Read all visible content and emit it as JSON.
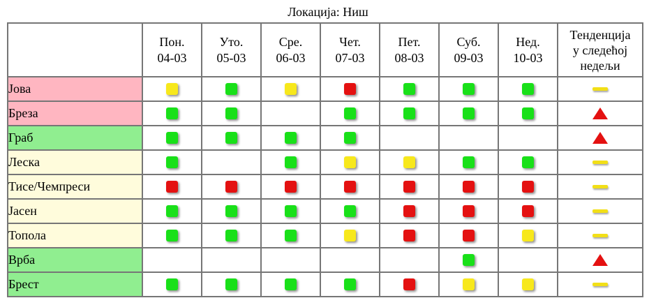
{
  "location_label": "Локација: Ниш",
  "colors": {
    "green": "#19e019",
    "yellow": "#f7e81c",
    "red": "#e41111",
    "pink_row": "#ffb6c1",
    "green_row": "#90ee90",
    "cream_row": "#fffcdc"
  },
  "header": {
    "days": [
      {
        "day": "Пон.",
        "date": "04-03"
      },
      {
        "day": "Уто.",
        "date": "05-03"
      },
      {
        "day": "Сре.",
        "date": "06-03"
      },
      {
        "day": "Чет.",
        "date": "07-03"
      },
      {
        "day": "Пет.",
        "date": "08-03"
      },
      {
        "day": "Суб.",
        "date": "09-03"
      },
      {
        "day": "Нед.",
        "date": "10-03"
      }
    ],
    "trend_line1": "Тенденција",
    "trend_line2": "у следећој",
    "trend_line3": "недељи"
  },
  "rows": [
    {
      "name": "Јова",
      "bg": "pink",
      "levels": [
        "yellow",
        "green",
        "yellow",
        "red",
        "green",
        "green",
        "green"
      ],
      "trend": "steady"
    },
    {
      "name": "Бреза",
      "bg": "pink",
      "levels": [
        "green",
        "green",
        "",
        "green",
        "green",
        "green",
        "green"
      ],
      "trend": "up"
    },
    {
      "name": "Граб",
      "bg": "green",
      "levels": [
        "green",
        "green",
        "green",
        "green",
        "",
        "",
        ""
      ],
      "trend": "up"
    },
    {
      "name": "Леска",
      "bg": "cream",
      "levels": [
        "green",
        "",
        "green",
        "yellow",
        "yellow",
        "green",
        "green"
      ],
      "trend": "steady"
    },
    {
      "name": "Тисе/Чемпреси",
      "bg": "cream",
      "levels": [
        "red",
        "red",
        "red",
        "red",
        "red",
        "red",
        "red"
      ],
      "trend": "steady"
    },
    {
      "name": "Јасен",
      "bg": "cream",
      "levels": [
        "green",
        "green",
        "green",
        "green",
        "red",
        "red",
        "red"
      ],
      "trend": "steady"
    },
    {
      "name": "Топола",
      "bg": "cream",
      "levels": [
        "green",
        "green",
        "green",
        "yellow",
        "red",
        "red",
        "yellow"
      ],
      "trend": "steady"
    },
    {
      "name": "Врба",
      "bg": "green",
      "levels": [
        "",
        "",
        "",
        "",
        "",
        "green",
        ""
      ],
      "trend": "up"
    },
    {
      "name": "Брест",
      "bg": "green",
      "levels": [
        "green",
        "green",
        "green",
        "green",
        "red",
        "yellow",
        "yellow"
      ],
      "trend": "steady"
    }
  ]
}
